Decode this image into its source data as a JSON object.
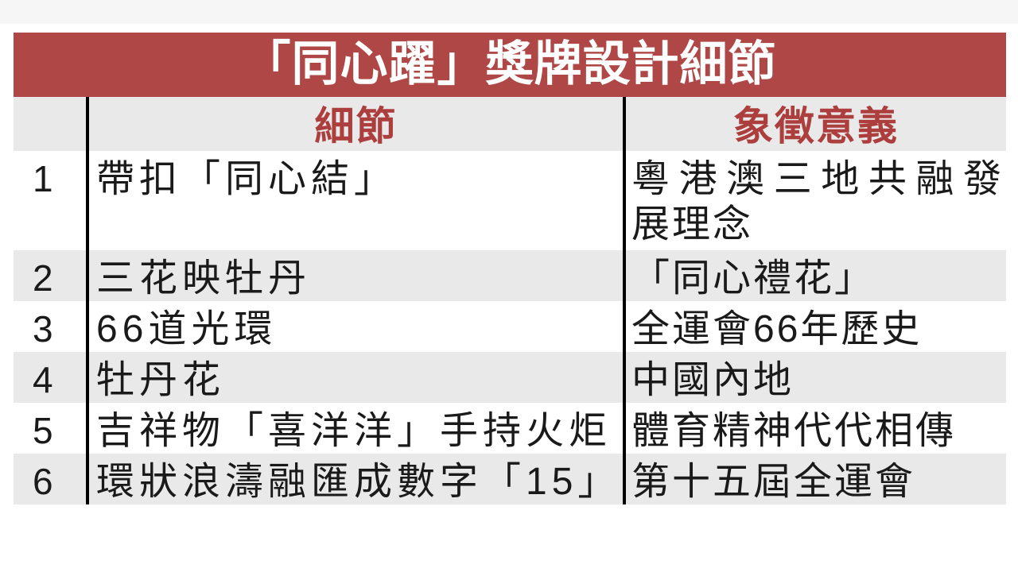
{
  "title": "「同心躍」獎牌設計細節",
  "table": {
    "headers": {
      "num": "",
      "detail": "細節",
      "meaning": "象徵意義"
    },
    "rows": [
      {
        "num": "1",
        "detail": "帶扣「同心結」",
        "meaning_lines": [
          "粵港澳三地共融發",
          "展理念"
        ]
      },
      {
        "num": "2",
        "detail": "三花映牡丹",
        "meaning_lines": [
          "「同心禮花」"
        ]
      },
      {
        "num": "3",
        "detail": "66道光環",
        "meaning_lines": [
          "全運會66年歷史"
        ]
      },
      {
        "num": "4",
        "detail": "牡丹花",
        "meaning_lines": [
          "中國內地"
        ]
      },
      {
        "num": "5",
        "detail": "吉祥物「喜洋洋」手持火炬",
        "meaning_lines": [
          "體育精神代代相傳"
        ]
      },
      {
        "num": "6",
        "detail": "環狀浪濤融匯成數字「15」",
        "meaning_lines": [
          "第十五屆全運會"
        ]
      }
    ]
  },
  "chart_data": {
    "type": "table",
    "title": "「同心躍」獎牌設計細節",
    "columns": [
      "#",
      "細節",
      "象徵意義"
    ],
    "rows": [
      [
        "1",
        "帶扣「同心結」",
        "粵港澳三地共融發展理念"
      ],
      [
        "2",
        "三花映牡丹",
        "「同心禮花」"
      ],
      [
        "3",
        "66道光環",
        "全運會66年歷史"
      ],
      [
        "4",
        "牡丹花",
        "中國內地"
      ],
      [
        "5",
        "吉祥物「喜洋洋」手持火炬",
        "體育精神代代相傳"
      ],
      [
        "6",
        "環狀浪濤融匯成數字「15」",
        "第十五屆全運會"
      ]
    ],
    "layout": "title banner on top, alternating row shading, two vertical black column rules, no horizontal rules"
  },
  "colors": {
    "banner_bg": "#b04747",
    "banner_text": "#ffffff",
    "header_text": "#ad3e3e",
    "row_bg": "#ffffff",
    "row_alt_bg": "#e9e9e9",
    "body_text": "#1a1a1a",
    "divider": "#000000"
  }
}
